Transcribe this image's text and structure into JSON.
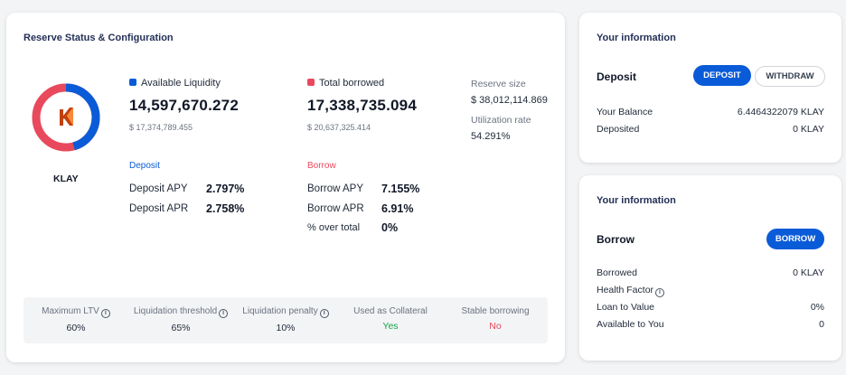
{
  "colors": {
    "accent": "#0a5bd8",
    "borrow": "#e8495c",
    "success": "#16a34a"
  },
  "reserve": {
    "title": "Reserve Status & Configuration",
    "asset": "KLAY",
    "logo_icon": "klay-logo",
    "donut": {
      "available_fraction": 0.457,
      "borrowed_fraction": 0.543
    },
    "available": {
      "label": "Available Liquidity",
      "value": "14,597,670.272",
      "usd": "$ 17,374,789.455"
    },
    "borrowed": {
      "label": "Total borrowed",
      "value": "17,338,735.094",
      "usd": "$ 20,637,325.414"
    },
    "reserve_size": {
      "label": "Reserve size",
      "value": "$ 38,012,114.869"
    },
    "utilization": {
      "label": "Utilization rate",
      "value": "54.291%"
    },
    "deposit": {
      "heading": "Deposit",
      "apy_label": "Deposit APY",
      "apy": "2.797%",
      "apr_label": "Deposit APR",
      "apr": "2.758%"
    },
    "borrow": {
      "heading": "Borrow",
      "apy_label": "Borrow APY",
      "apy": "7.155%",
      "apr_label": "Borrow APR",
      "apr": "6.91%",
      "over_label": "% over total",
      "over": "0%"
    },
    "params": [
      {
        "label": "Maximum LTV",
        "value": "60%",
        "info": true
      },
      {
        "label": "Liquidation threshold",
        "value": "65%",
        "info": true
      },
      {
        "label": "Liquidation penalty",
        "value": "10%",
        "info": true
      },
      {
        "label": "Used as Collateral",
        "value": "Yes",
        "info": false
      },
      {
        "label": "Stable borrowing",
        "value": "No",
        "info": false
      }
    ]
  },
  "deposit_card": {
    "title": "Your information",
    "heading": "Deposit",
    "deposit_button": "DEPOSIT",
    "withdraw_button": "WITHDRAW",
    "rows": [
      {
        "label": "Your Balance",
        "value": "6.4464322079 KLAY"
      },
      {
        "label": "Deposited",
        "value": "0 KLAY"
      }
    ]
  },
  "borrow_card": {
    "title": "Your information",
    "heading": "Borrow",
    "borrow_button": "BORROW",
    "rows": [
      {
        "label": "Borrowed",
        "value": "0 KLAY"
      },
      {
        "label": "Health Factor",
        "value": "",
        "info": true
      },
      {
        "label": "Loan to Value",
        "value": "0%"
      },
      {
        "label": "Available to You",
        "value": "0"
      }
    ]
  }
}
